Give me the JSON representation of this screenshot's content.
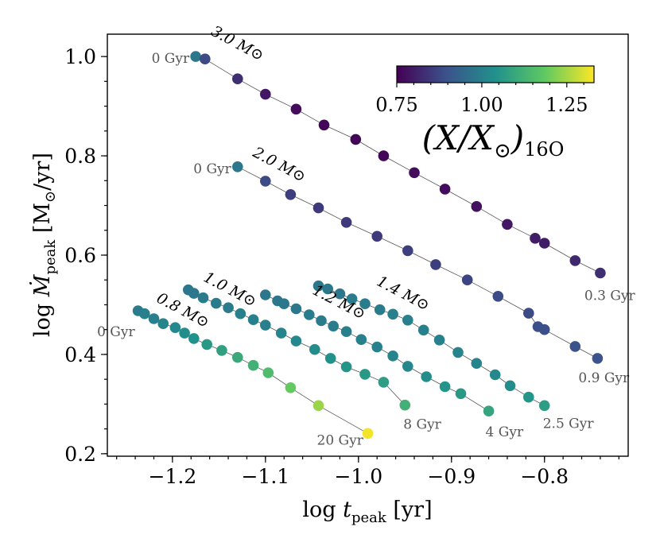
{
  "chart_data": {
    "type": "scatter",
    "xlabel": "log  t_peak [yr]",
    "ylabel": "log  Ṁ_peak [M⊙/yr]",
    "xlim": [
      -1.27,
      -0.71
    ],
    "ylim": [
      0.195,
      1.045
    ],
    "x_ticks": [
      -1.2,
      -1.1,
      -1.0,
      -0.9,
      -0.8
    ],
    "x_tick_labels": [
      "−1.2",
      "−1.1",
      "−1.0",
      "−0.9",
      "−0.8"
    ],
    "y_ticks": [
      0.2,
      0.4,
      0.6,
      0.8,
      1.0
    ],
    "y_tick_labels": [
      "0.2",
      "0.4",
      "0.6",
      "0.8",
      "1.0"
    ],
    "grid": false,
    "colorbar": {
      "label": "(X/X⊙)",
      "label_sub": "16O",
      "range": [
        0.75,
        1.33
      ],
      "ticks": [
        0.75,
        1.0,
        1.25
      ],
      "tick_labels": [
        "0.75",
        "1.00",
        "1.25"
      ],
      "colormap": "viridis",
      "placement": "top-right"
    },
    "series": [
      {
        "name": "3.0 M⊙",
        "points": [
          [
            -1.175,
            1.0,
            0.98
          ],
          [
            -1.165,
            0.995,
            0.88
          ],
          [
            -1.13,
            0.955,
            0.83
          ],
          [
            -1.1,
            0.924,
            0.79
          ],
          [
            -1.067,
            0.894,
            0.77
          ],
          [
            -1.037,
            0.862,
            0.76
          ],
          [
            -1.003,
            0.833,
            0.76
          ],
          [
            -0.973,
            0.8,
            0.76
          ],
          [
            -0.94,
            0.766,
            0.77
          ],
          [
            -0.907,
            0.733,
            0.77
          ],
          [
            -0.873,
            0.698,
            0.78
          ],
          [
            -0.84,
            0.662,
            0.79
          ],
          [
            -0.81,
            0.634,
            0.8
          ],
          [
            -0.8,
            0.624,
            0.8
          ],
          [
            -0.767,
            0.589,
            0.82
          ],
          [
            -0.74,
            0.564,
            0.83
          ]
        ],
        "label_start": "0 Gyr",
        "label_end": "0.3 Gyr"
      },
      {
        "name": "2.0 M⊙",
        "points": [
          [
            -1.13,
            0.778,
            0.98
          ],
          [
            -1.1,
            0.749,
            0.88
          ],
          [
            -1.073,
            0.722,
            0.86
          ],
          [
            -1.043,
            0.695,
            0.85
          ],
          [
            -1.013,
            0.666,
            0.85
          ],
          [
            -0.98,
            0.638,
            0.85
          ],
          [
            -0.947,
            0.609,
            0.86
          ],
          [
            -0.917,
            0.581,
            0.86
          ],
          [
            -0.883,
            0.55,
            0.87
          ],
          [
            -0.85,
            0.517,
            0.88
          ],
          [
            -0.817,
            0.483,
            0.88
          ],
          [
            -0.807,
            0.456,
            0.89
          ],
          [
            -0.8,
            0.45,
            0.89
          ],
          [
            -0.767,
            0.416,
            0.9
          ],
          [
            -0.743,
            0.392,
            0.9
          ]
        ],
        "label_start": "0 Gyr",
        "label_end": "0.9 Gyr"
      },
      {
        "name": "1.4 M⊙",
        "points": [
          [
            -1.043,
            0.538,
            0.98
          ],
          [
            -1.033,
            0.532,
            0.98
          ],
          [
            -1.02,
            0.522,
            0.98
          ],
          [
            -1.007,
            0.512,
            0.99
          ],
          [
            -0.993,
            0.502,
            0.99
          ],
          [
            -0.977,
            0.49,
            0.99
          ],
          [
            -0.963,
            0.481,
            1.0
          ],
          [
            -0.947,
            0.469,
            1.0
          ],
          [
            -0.93,
            0.449,
            1.0
          ],
          [
            -0.913,
            0.429,
            1.0
          ],
          [
            -0.893,
            0.404,
            1.01
          ],
          [
            -0.873,
            0.382,
            1.01
          ],
          [
            -0.853,
            0.359,
            1.02
          ],
          [
            -0.837,
            0.337,
            1.03
          ],
          [
            -0.817,
            0.314,
            1.05
          ],
          [
            -0.8,
            0.297,
            1.07
          ]
        ],
        "label_start": "",
        "label_end": "2.5 Gyr"
      },
      {
        "name": "1.2 M⊙",
        "points": [
          [
            -1.1,
            0.52,
            0.98
          ],
          [
            -1.087,
            0.508,
            0.98
          ],
          [
            -1.08,
            0.502,
            0.98
          ],
          [
            -1.067,
            0.492,
            0.98
          ],
          [
            -1.053,
            0.48,
            0.99
          ],
          [
            -1.04,
            0.468,
            0.99
          ],
          [
            -1.027,
            0.457,
            0.99
          ],
          [
            -1.013,
            0.446,
            1.0
          ],
          [
            -0.997,
            0.43,
            1.0
          ],
          [
            -0.98,
            0.415,
            1.0
          ],
          [
            -0.963,
            0.397,
            1.01
          ],
          [
            -0.947,
            0.376,
            1.02
          ],
          [
            -0.927,
            0.355,
            1.03
          ],
          [
            -0.907,
            0.335,
            1.05
          ],
          [
            -0.89,
            0.321,
            1.06
          ],
          [
            -0.86,
            0.286,
            1.09
          ]
        ],
        "label_start": "",
        "label_end": "4 Gyr"
      },
      {
        "name": "1.0 M⊙",
        "points": [
          [
            -1.183,
            0.53,
            0.98
          ],
          [
            -1.177,
            0.523,
            0.98
          ],
          [
            -1.167,
            0.514,
            0.99
          ],
          [
            -1.153,
            0.503,
            0.99
          ],
          [
            -1.14,
            0.494,
            0.99
          ],
          [
            -1.127,
            0.482,
            1.0
          ],
          [
            -1.113,
            0.47,
            1.0
          ],
          [
            -1.1,
            0.459,
            1.0
          ],
          [
            -1.083,
            0.443,
            1.01
          ],
          [
            -1.067,
            0.427,
            1.02
          ],
          [
            -1.047,
            0.41,
            1.03
          ],
          [
            -1.03,
            0.392,
            1.04
          ],
          [
            -1.013,
            0.375,
            1.05
          ],
          [
            -0.993,
            0.36,
            1.06
          ],
          [
            -0.973,
            0.344,
            1.07
          ],
          [
            -0.95,
            0.298,
            1.12
          ]
        ],
        "label_start": "",
        "label_end": "8 Gyr"
      },
      {
        "name": "0.8 M⊙",
        "points": [
          [
            -1.237,
            0.488,
            0.99
          ],
          [
            -1.23,
            0.482,
            1.0
          ],
          [
            -1.22,
            0.472,
            1.0
          ],
          [
            -1.21,
            0.462,
            1.01
          ],
          [
            -1.197,
            0.454,
            1.02
          ],
          [
            -1.187,
            0.443,
            1.03
          ],
          [
            -1.177,
            0.432,
            1.04
          ],
          [
            -1.163,
            0.42,
            1.06
          ],
          [
            -1.147,
            0.408,
            1.08
          ],
          [
            -1.13,
            0.394,
            1.1
          ],
          [
            -1.113,
            0.378,
            1.12
          ],
          [
            -1.097,
            0.363,
            1.15
          ],
          [
            -1.073,
            0.333,
            1.19
          ],
          [
            -1.043,
            0.297,
            1.24
          ],
          [
            -0.99,
            0.241,
            1.32
          ]
        ],
        "label_start": "0 Gyr",
        "label_end": "20 Gyr"
      }
    ]
  }
}
